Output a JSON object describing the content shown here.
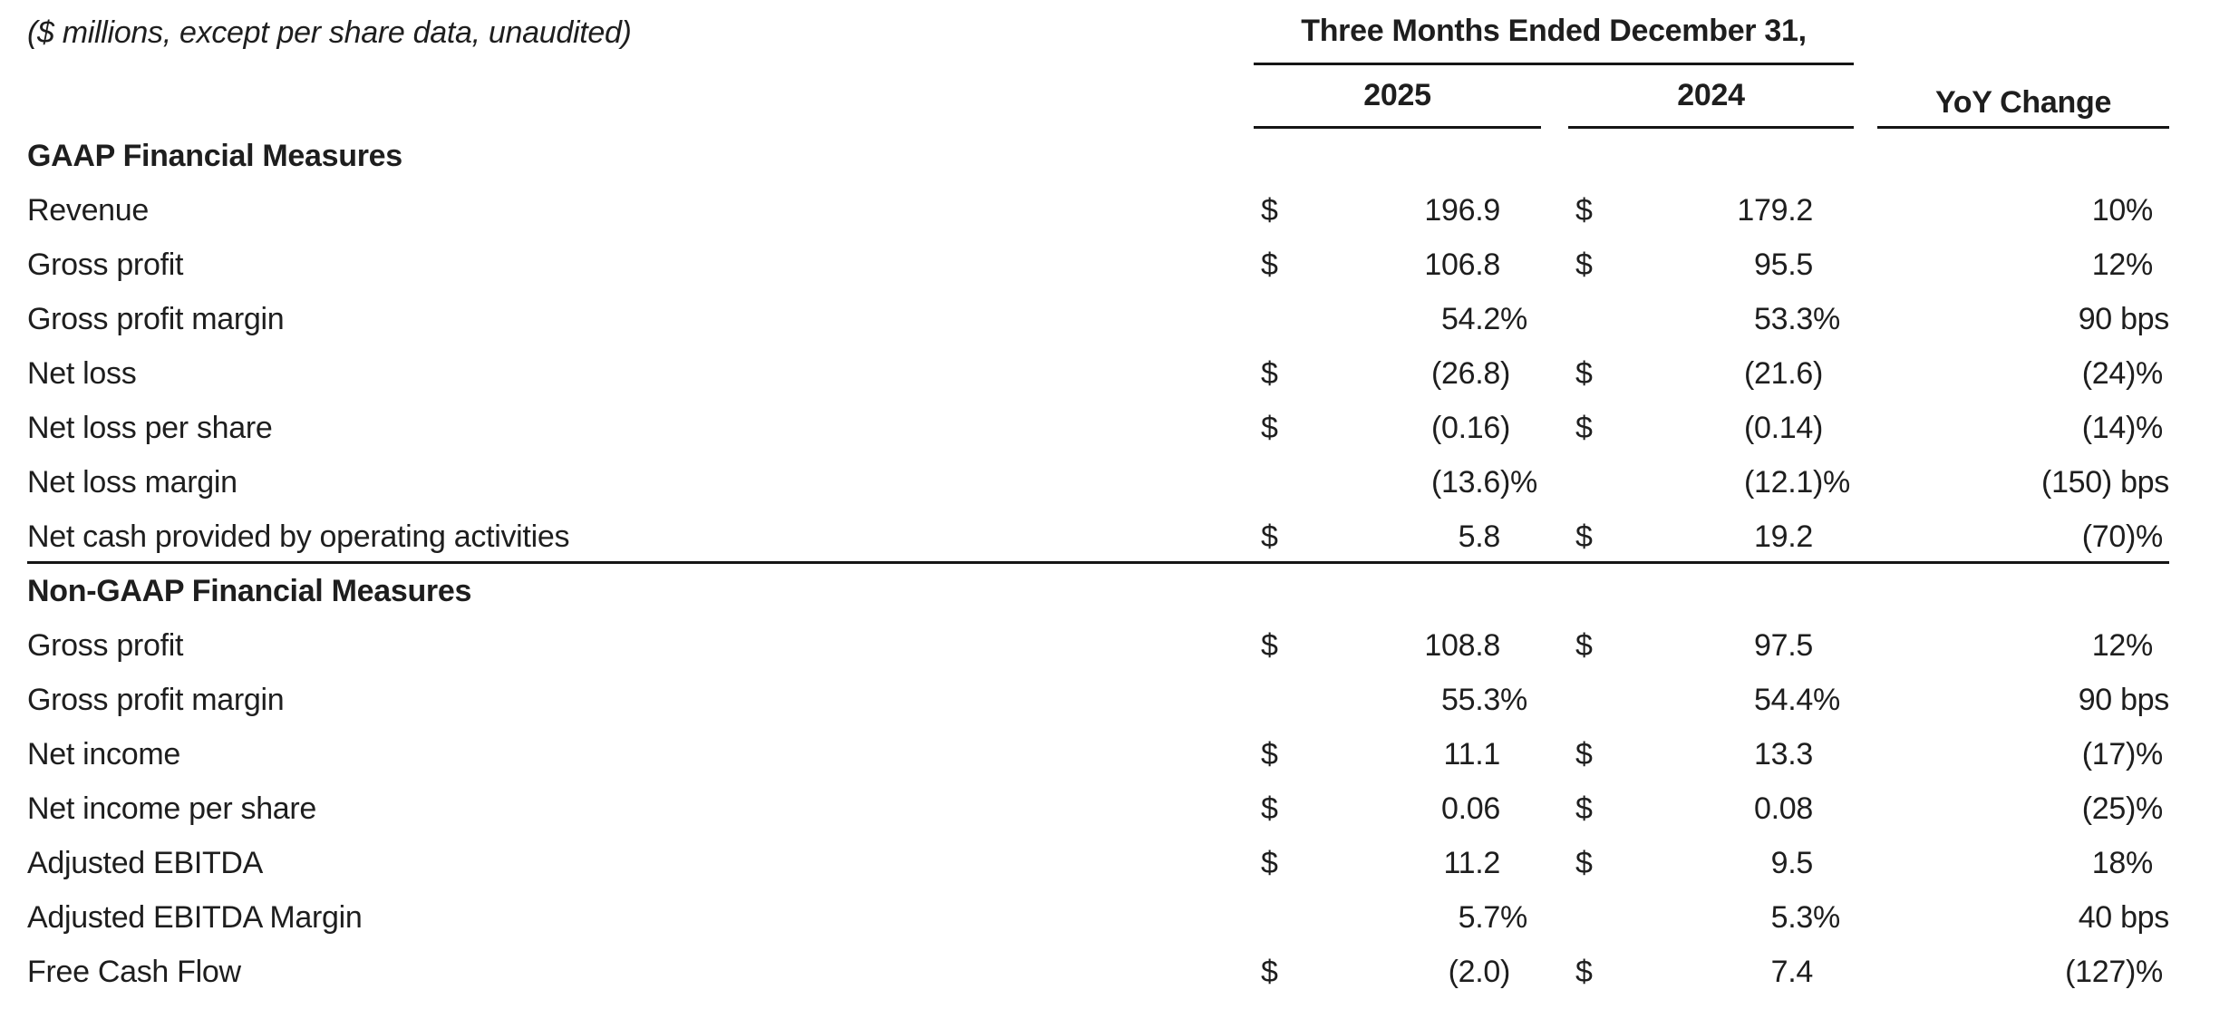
{
  "caption": "($ millions, except per share data, unaudited)",
  "currency_symbol": "$",
  "columns": {
    "group_title": "Three Months Ended December 31,",
    "year1": "2025",
    "year2": "2024",
    "yoy": "YoY Change"
  },
  "sections": [
    {
      "title": "GAAP Financial Measures",
      "divider_after": true,
      "rows": [
        {
          "label": "Revenue",
          "currency": true,
          "y2025": "196.9",
          "y2024": "179.2",
          "yoy": "10%"
        },
        {
          "label": "Gross profit",
          "currency": true,
          "y2025": "106.8",
          "y2024": "95.5",
          "yoy": "12%"
        },
        {
          "label": "Gross profit margin",
          "currency": false,
          "y2025": "54.2%",
          "y2024": "53.3%",
          "yoy": "90 bps"
        },
        {
          "label": "Net loss",
          "currency": true,
          "y2025": "(26.8)",
          "y2024": "(21.6)",
          "yoy": "(24)%"
        },
        {
          "label": "Net loss per share",
          "currency": true,
          "y2025": "(0.16)",
          "y2024": "(0.14)",
          "yoy": "(14)%"
        },
        {
          "label": "Net loss margin",
          "currency": false,
          "y2025": "(13.6)%",
          "y2024": "(12.1)%",
          "yoy": "(150) bps"
        },
        {
          "label": "Net cash provided by operating activities",
          "currency": true,
          "y2025": "5.8",
          "y2024": "19.2",
          "yoy": "(70)%"
        }
      ]
    },
    {
      "title": "Non-GAAP Financial Measures",
      "divider_after": false,
      "rows": [
        {
          "label": "Gross profit",
          "currency": true,
          "y2025": "108.8",
          "y2024": "97.5",
          "yoy": "12%"
        },
        {
          "label": "Gross profit margin",
          "currency": false,
          "y2025": "55.3%",
          "y2024": "54.4%",
          "yoy": "90 bps"
        },
        {
          "label": "Net income",
          "currency": true,
          "y2025": "11.1",
          "y2024": "13.3",
          "yoy": "(17)%"
        },
        {
          "label": "Net income per share",
          "currency": true,
          "y2025": "0.06",
          "y2024": "0.08",
          "yoy": "(25)%"
        },
        {
          "label": "Adjusted EBITDA",
          "currency": true,
          "y2025": "11.2",
          "y2024": "9.5",
          "yoy": "18%"
        },
        {
          "label": "Adjusted EBITDA Margin",
          "currency": false,
          "y2025": "5.7%",
          "y2024": "5.3%",
          "yoy": "40 bps"
        },
        {
          "label": "Free Cash Flow",
          "currency": true,
          "y2025": "(2.0)",
          "y2024": "7.4",
          "yoy": "(127)%"
        }
      ]
    }
  ]
}
